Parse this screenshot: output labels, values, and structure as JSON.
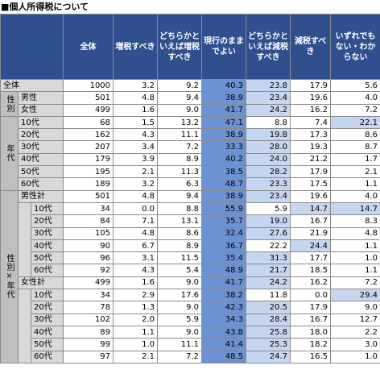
{
  "title": "■個人所得税について",
  "table": {
    "header": [
      "全体",
      "増税すべき",
      "どちらかといえば増税すべき",
      "現行のままでよい",
      "どちらかといえば減税すべき",
      "減税すべき",
      "いずれでもない・わからない"
    ],
    "sections": [
      {
        "rows": [
          {
            "label": "全体",
            "cells": [
              "1000",
              "3.2",
              "9.2",
              "40.3",
              "23.8",
              "17.9",
              "5.6"
            ]
          }
        ]
      },
      {
        "label": "性別",
        "rows": [
          {
            "label": "男性",
            "cells": [
              "501",
              "4.8",
              "9.4",
              "38.9",
              "23.4",
              "19.6",
              "4.0"
            ]
          },
          {
            "label": "女性",
            "cells": [
              "499",
              "1.6",
              "9.0",
              "41.7",
              "24.2",
              "16.2",
              "7.2"
            ]
          }
        ]
      },
      {
        "label": "年代",
        "rows": [
          {
            "label": "10代",
            "cells": [
              "68",
              "1.5",
              "13.2",
              "47.1",
              "8.8",
              "7.4",
              "22.1"
            ]
          },
          {
            "label": "20代",
            "cells": [
              "162",
              "4.3",
              "11.1",
              "38.9",
              "19.8",
              "17.3",
              "8.6"
            ]
          },
          {
            "label": "30代",
            "cells": [
              "207",
              "3.4",
              "7.2",
              "33.3",
              "28.0",
              "19.3",
              "8.7"
            ]
          },
          {
            "label": "40代",
            "cells": [
              "179",
              "3.9",
              "8.9",
              "40.2",
              "24.0",
              "21.2",
              "1.7"
            ]
          },
          {
            "label": "50代",
            "cells": [
              "195",
              "2.1",
              "11.3",
              "38.5",
              "28.2",
              "17.9",
              "2.1"
            ]
          },
          {
            "label": "60代",
            "cells": [
              "189",
              "3.2",
              "6.3",
              "48.7",
              "23.3",
              "17.5",
              "1.1"
            ]
          }
        ]
      },
      {
        "label": "性別×年代",
        "groups": [
          {
            "label": "男性計",
            "cells": [
              "501",
              "4.8",
              "9.4",
              "38.9",
              "23.4",
              "19.6",
              "4.0"
            ],
            "rows": [
              {
                "label": "10代",
                "cells": [
                  "34",
                  "0.0",
                  "8.8",
                  "55.9",
                  "5.9",
                  "14.7",
                  "14.7"
                ]
              },
              {
                "label": "20代",
                "cells": [
                  "84",
                  "7.1",
                  "13.1",
                  "35.7",
                  "19.0",
                  "16.7",
                  "8.3"
                ]
              },
              {
                "label": "30代",
                "cells": [
                  "105",
                  "4.8",
                  "8.6",
                  "32.4",
                  "27.6",
                  "21.9",
                  "4.8"
                ]
              },
              {
                "label": "40代",
                "cells": [
                  "90",
                  "6.7",
                  "8.9",
                  "36.7",
                  "22.2",
                  "24.4",
                  "1.1"
                ]
              },
              {
                "label": "50代",
                "cells": [
                  "96",
                  "3.1",
                  "11.5",
                  "35.4",
                  "31.3",
                  "17.7",
                  "1.0"
                ]
              },
              {
                "label": "60代",
                "cells": [
                  "92",
                  "4.3",
                  "5.4",
                  "48.9",
                  "21.7",
                  "18.5",
                  "1.1"
                ]
              }
            ]
          },
          {
            "label": "女性計",
            "cells": [
              "499",
              "1.6",
              "9.0",
              "41.7",
              "24.2",
              "16.2",
              "7.2"
            ],
            "rows": [
              {
                "label": "10代",
                "cells": [
                  "34",
                  "2.9",
                  "17.6",
                  "38.2",
                  "11.8",
                  "0.0",
                  "29.4"
                ]
              },
              {
                "label": "20代",
                "cells": [
                  "78",
                  "1.3",
                  "9.0",
                  "42.3",
                  "20.5",
                  "17.9",
                  "9.0"
                ]
              },
              {
                "label": "30代",
                "cells": [
                  "102",
                  "2.0",
                  "5.9",
                  "34.3",
                  "28.4",
                  "16.7",
                  "12.7"
                ]
              },
              {
                "label": "40代",
                "cells": [
                  "89",
                  "1.1",
                  "9.0",
                  "43.8",
                  "25.8",
                  "18.0",
                  "2.2"
                ]
              },
              {
                "label": "50代",
                "cells": [
                  "99",
                  "1.0",
                  "11.1",
                  "41.4",
                  "25.3",
                  "18.2",
                  "3.0"
                ]
              },
              {
                "label": "60代",
                "cells": [
                  "97",
                  "2.1",
                  "7.2",
                  "48.5",
                  "24.7",
                  "16.5",
                  "1.0"
                ]
              }
            ]
          }
        ]
      }
    ]
  }
}
